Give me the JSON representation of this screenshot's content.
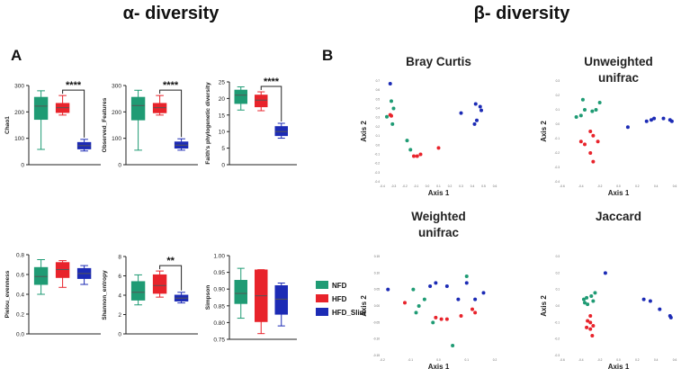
{
  "headers": {
    "alpha": "α- diversity",
    "beta": "β- diversity"
  },
  "panels": {
    "a": "A",
    "b": "B"
  },
  "colors": {
    "NFD": "#1f9b74",
    "HFD": "#e8232b",
    "HFD_Slim": "#1c2bb5"
  },
  "legend": {
    "items": [
      "NFD",
      "HFD",
      "HFD_Slim"
    ]
  },
  "chart_data": [
    {
      "id": "chao1",
      "type": "box",
      "ylabel": "Chao1",
      "ylim": [
        0,
        300
      ],
      "yticks": [
        "0",
        "100",
        "200",
        "300"
      ],
      "groups": [
        {
          "name": "NFD",
          "min": 58,
          "q1": 172,
          "median": 222,
          "q3": 255,
          "max": 280
        },
        {
          "name": "HFD",
          "min": 188,
          "q1": 198,
          "median": 216,
          "q3": 232,
          "max": 262
        },
        {
          "name": "HFD_Slim",
          "min": 52,
          "q1": 60,
          "median": 72,
          "q3": 84,
          "max": 96
        }
      ],
      "sig": {
        "label": "****",
        "from": 1,
        "to": 2
      }
    },
    {
      "id": "observed",
      "type": "box",
      "ylabel": "Observed_Features",
      "ylim": [
        0,
        300
      ],
      "yticks": [
        "0",
        "100",
        "200",
        "300"
      ],
      "groups": [
        {
          "name": "NFD",
          "min": 55,
          "q1": 170,
          "median": 224,
          "q3": 255,
          "max": 282
        },
        {
          "name": "HFD",
          "min": 188,
          "q1": 197,
          "median": 216,
          "q3": 232,
          "max": 262
        },
        {
          "name": "HFD_Slim",
          "min": 55,
          "q1": 63,
          "median": 74,
          "q3": 86,
          "max": 98
        }
      ],
      "sig": {
        "label": "****",
        "from": 1,
        "to": 2
      }
    },
    {
      "id": "faith",
      "type": "box",
      "ylabel": "Faith's phylogenetic diversity",
      "ylim": [
        0,
        25
      ],
      "yticks": [
        "0",
        "5",
        "10",
        "15",
        "20",
        "25"
      ],
      "groups": [
        {
          "name": "NFD",
          "min": 16.5,
          "q1": 18.5,
          "median": 21,
          "q3": 22.5,
          "max": 23.5
        },
        {
          "name": "HFD",
          "min": 16.3,
          "q1": 17.5,
          "median": 19.5,
          "q3": 21,
          "max": 22
        },
        {
          "name": "HFD_Slim",
          "min": 8,
          "q1": 8.8,
          "median": 10,
          "q3": 11.5,
          "max": 12.5
        }
      ],
      "sig": {
        "label": "****",
        "from": 1,
        "to": 2
      }
    },
    {
      "id": "pielou",
      "type": "box",
      "ylabel": "Pielou_evenness",
      "ylim": [
        0,
        0.8
      ],
      "yticks": [
        "0.0",
        "0.2",
        "0.4",
        "0.6",
        "0.8"
      ],
      "groups": [
        {
          "name": "NFD",
          "min": 0.4,
          "q1": 0.5,
          "median": 0.58,
          "q3": 0.67,
          "max": 0.75
        },
        {
          "name": "HFD",
          "min": 0.47,
          "q1": 0.57,
          "median": 0.65,
          "q3": 0.72,
          "max": 0.74
        },
        {
          "name": "HFD_Slim",
          "min": 0.5,
          "q1": 0.56,
          "median": 0.61,
          "q3": 0.66,
          "max": 0.69
        }
      ],
      "sig": null
    },
    {
      "id": "shannon",
      "type": "box",
      "ylabel": "Shannon_entropy",
      "ylim": [
        0,
        8
      ],
      "yticks": [
        "0",
        "2",
        "4",
        "6",
        "8"
      ],
      "groups": [
        {
          "name": "NFD",
          "min": 3,
          "q1": 3.5,
          "median": 4.3,
          "q3": 5.4,
          "max": 6.1
        },
        {
          "name": "HFD",
          "min": 3.8,
          "q1": 4.2,
          "median": 5,
          "q3": 6.1,
          "max": 6.5
        },
        {
          "name": "HFD_Slim",
          "min": 3.2,
          "q1": 3.4,
          "median": 3.7,
          "q3": 4.0,
          "max": 4.3
        }
      ],
      "sig": {
        "label": "**",
        "from": 1,
        "to": 2
      }
    },
    {
      "id": "simpson",
      "type": "box",
      "ylabel": "Simpson",
      "ylim": [
        0.75,
        1.0
      ],
      "yticks": [
        "0.75",
        "0.80",
        "0.85",
        "0.90",
        "0.95",
        "1.00"
      ],
      "groups": [
        {
          "name": "NFD",
          "min": 0.813,
          "q1": 0.857,
          "median": 0.887,
          "q3": 0.926,
          "max": 0.962
        },
        {
          "name": "HFD",
          "min": 0.767,
          "q1": 0.803,
          "median": 0.88,
          "q3": 0.957,
          "max": 0.958
        },
        {
          "name": "HFD_Slim",
          "min": 0.79,
          "q1": 0.825,
          "median": 0.87,
          "q3": 0.91,
          "max": 0.918
        }
      ],
      "sig": null
    },
    {
      "id": "bray",
      "type": "scatter",
      "title": [
        "Bray Curtis"
      ],
      "xlabel": "Axis 1",
      "ylabel": "Axis 2",
      "xlim": [
        -0.4,
        0.6
      ],
      "ylim": [
        -0.4,
        0.7
      ],
      "xticks": [
        "-0.4",
        "-0.3",
        "-0.2",
        "-0.1",
        "0.0",
        "0.1",
        "0.2",
        "0.3",
        "0.4",
        "0.5",
        "0.6"
      ],
      "yticks": [
        "-0.4",
        "-0.3",
        "-0.2",
        "-0.1",
        "0.0",
        "0.1",
        "0.2",
        "0.3",
        "0.4",
        "0.5",
        "0.6",
        "0.7"
      ],
      "points": [
        {
          "g": "HFD_Slim",
          "x": -0.33,
          "y": 0.67
        },
        {
          "g": "NFD",
          "x": -0.32,
          "y": 0.48
        },
        {
          "g": "NFD",
          "x": -0.3,
          "y": 0.4
        },
        {
          "g": "NFD",
          "x": -0.36,
          "y": 0.31
        },
        {
          "g": "NFD",
          "x": -0.31,
          "y": 0.23
        },
        {
          "g": "NFD",
          "x": -0.18,
          "y": 0.05
        },
        {
          "g": "NFD",
          "x": -0.15,
          "y": -0.05
        },
        {
          "g": "HFD",
          "x": -0.33,
          "y": 0.33
        },
        {
          "g": "HFD",
          "x": -0.32,
          "y": 0.32
        },
        {
          "g": "HFD",
          "x": -0.12,
          "y": -0.12
        },
        {
          "g": "HFD",
          "x": -0.09,
          "y": -0.12
        },
        {
          "g": "HFD",
          "x": -0.06,
          "y": -0.1
        },
        {
          "g": "HFD",
          "x": 0.1,
          "y": -0.03
        },
        {
          "g": "HFD_Slim",
          "x": 0.3,
          "y": 0.35
        },
        {
          "g": "HFD_Slim",
          "x": 0.43,
          "y": 0.45
        },
        {
          "g": "HFD_Slim",
          "x": 0.47,
          "y": 0.42
        },
        {
          "g": "HFD_Slim",
          "x": 0.48,
          "y": 0.38
        },
        {
          "g": "HFD_Slim",
          "x": 0.44,
          "y": 0.27
        },
        {
          "g": "HFD_Slim",
          "x": 0.42,
          "y": 0.23
        }
      ]
    },
    {
      "id": "unweighted",
      "type": "scatter",
      "title": [
        "Unweighted",
        "unifrac"
      ],
      "xlabel": "Axis 1",
      "ylabel": "Axis 2",
      "xlim": [
        -0.6,
        0.6
      ],
      "ylim": [
        -0.4,
        0.3
      ],
      "xticks": [
        "-0.6",
        "-0.4",
        "-0.2",
        "0.0",
        "0.2",
        "0.4",
        "0.6"
      ],
      "yticks": [
        "-0.4",
        "-0.3",
        "-0.2",
        "-0.1",
        "0.0",
        "0.1",
        "0.2",
        "0.3"
      ],
      "points": [
        {
          "g": "NFD",
          "x": -0.45,
          "y": 0.05
        },
        {
          "g": "NFD",
          "x": -0.4,
          "y": 0.06
        },
        {
          "g": "NFD",
          "x": -0.36,
          "y": 0.1
        },
        {
          "g": "NFD",
          "x": -0.28,
          "y": 0.09
        },
        {
          "g": "NFD",
          "x": -0.24,
          "y": 0.1
        },
        {
          "g": "NFD",
          "x": -0.2,
          "y": 0.15
        },
        {
          "g": "NFD",
          "x": -0.38,
          "y": 0.17
        },
        {
          "g": "HFD",
          "x": -0.3,
          "y": -0.05
        },
        {
          "g": "HFD",
          "x": -0.27,
          "y": -0.08
        },
        {
          "g": "HFD",
          "x": -0.4,
          "y": -0.12
        },
        {
          "g": "HFD",
          "x": -0.36,
          "y": -0.14
        },
        {
          "g": "HFD",
          "x": -0.3,
          "y": -0.2
        },
        {
          "g": "HFD",
          "x": -0.22,
          "y": -0.12
        },
        {
          "g": "HFD",
          "x": -0.27,
          "y": -0.26
        },
        {
          "g": "HFD_Slim",
          "x": 0.1,
          "y": -0.02
        },
        {
          "g": "HFD_Slim",
          "x": 0.3,
          "y": 0.02
        },
        {
          "g": "HFD_Slim",
          "x": 0.35,
          "y": 0.03
        },
        {
          "g": "HFD_Slim",
          "x": 0.48,
          "y": 0.04
        },
        {
          "g": "HFD_Slim",
          "x": 0.55,
          "y": 0.03
        },
        {
          "g": "HFD_Slim",
          "x": 0.57,
          "y": 0.02
        },
        {
          "g": "HFD_Slim",
          "x": 0.38,
          "y": 0.04
        }
      ]
    },
    {
      "id": "weighted",
      "type": "scatter",
      "title": [
        "Weighted",
        "unifrac"
      ],
      "xlabel": "Axis 1",
      "ylabel": "Axis 2",
      "xlim": [
        -0.2,
        0.2
      ],
      "ylim": [
        -0.15,
        0.15
      ],
      "xticks": [
        "-0.2",
        "-0.1",
        "0.0",
        "0.1",
        "0.2"
      ],
      "yticks": [
        "-0.15",
        "-0.10",
        "-0.05",
        "0.00",
        "0.05",
        "0.10",
        "0.15"
      ],
      "points": [
        {
          "g": "HFD_Slim",
          "x": -0.18,
          "y": 0.05
        },
        {
          "g": "HFD_Slim",
          "x": -0.03,
          "y": 0.06
        },
        {
          "g": "HFD_Slim",
          "x": -0.01,
          "y": 0.07
        },
        {
          "g": "HFD_Slim",
          "x": 0.03,
          "y": 0.06
        },
        {
          "g": "HFD_Slim",
          "x": 0.1,
          "y": 0.07
        },
        {
          "g": "HFD_Slim",
          "x": 0.07,
          "y": 0.02
        },
        {
          "g": "HFD_Slim",
          "x": 0.13,
          "y": 0.02
        },
        {
          "g": "HFD_Slim",
          "x": 0.16,
          "y": 0.04
        },
        {
          "g": "NFD",
          "x": -0.09,
          "y": 0.05
        },
        {
          "g": "NFD",
          "x": -0.07,
          "y": 0.0
        },
        {
          "g": "NFD",
          "x": -0.08,
          "y": -0.02
        },
        {
          "g": "NFD",
          "x": -0.05,
          "y": 0.02
        },
        {
          "g": "NFD",
          "x": -0.02,
          "y": -0.05
        },
        {
          "g": "NFD",
          "x": 0.1,
          "y": 0.09
        },
        {
          "g": "NFD",
          "x": 0.05,
          "y": -0.12
        },
        {
          "g": "HFD",
          "x": -0.12,
          "y": 0.01
        },
        {
          "g": "HFD",
          "x": -0.01,
          "y": -0.035
        },
        {
          "g": "HFD",
          "x": 0.01,
          "y": -0.04
        },
        {
          "g": "HFD",
          "x": 0.03,
          "y": -0.04
        },
        {
          "g": "HFD",
          "x": 0.08,
          "y": -0.03
        },
        {
          "g": "HFD",
          "x": 0.12,
          "y": -0.01
        },
        {
          "g": "HFD",
          "x": 0.13,
          "y": -0.02
        }
      ]
    },
    {
      "id": "jaccard",
      "type": "scatter",
      "title": [
        "Jaccard"
      ],
      "xlabel": "Axis 1",
      "ylabel": "Axis 2",
      "xlim": [
        -0.6,
        0.6
      ],
      "ylim": [
        -0.3,
        0.3
      ],
      "xticks": [
        "-0.6",
        "-0.4",
        "-0.2",
        "0.0",
        "0.2",
        "0.4",
        "0.6"
      ],
      "yticks": [
        "-0.3",
        "-0.2",
        "-0.1",
        "0.0",
        "0.1",
        "0.2",
        "0.3"
      ],
      "points": [
        {
          "g": "NFD",
          "x": -0.37,
          "y": 0.04
        },
        {
          "g": "NFD",
          "x": -0.34,
          "y": 0.05
        },
        {
          "g": "NFD",
          "x": -0.36,
          "y": 0.02
        },
        {
          "g": "NFD",
          "x": -0.33,
          "y": 0.01
        },
        {
          "g": "NFD",
          "x": -0.27,
          "y": 0.03
        },
        {
          "g": "NFD",
          "x": -0.25,
          "y": 0.08
        },
        {
          "g": "NFD",
          "x": -0.29,
          "y": 0.06
        },
        {
          "g": "HFD",
          "x": -0.3,
          "y": -0.06
        },
        {
          "g": "HFD",
          "x": -0.33,
          "y": -0.09
        },
        {
          "g": "HFD",
          "x": -0.3,
          "y": -0.1
        },
        {
          "g": "HFD",
          "x": -0.34,
          "y": -0.13
        },
        {
          "g": "HFD",
          "x": -0.3,
          "y": -0.14
        },
        {
          "g": "HFD",
          "x": -0.27,
          "y": -0.12
        },
        {
          "g": "HFD",
          "x": -0.28,
          "y": -0.18
        },
        {
          "g": "HFD_Slim",
          "x": -0.14,
          "y": 0.2
        },
        {
          "g": "HFD_Slim",
          "x": 0.27,
          "y": 0.04
        },
        {
          "g": "HFD_Slim",
          "x": 0.34,
          "y": 0.03
        },
        {
          "g": "HFD_Slim",
          "x": 0.44,
          "y": -0.02
        },
        {
          "g": "HFD_Slim",
          "x": 0.55,
          "y": -0.06
        },
        {
          "g": "HFD_Slim",
          "x": 0.56,
          "y": -0.07
        }
      ]
    }
  ]
}
